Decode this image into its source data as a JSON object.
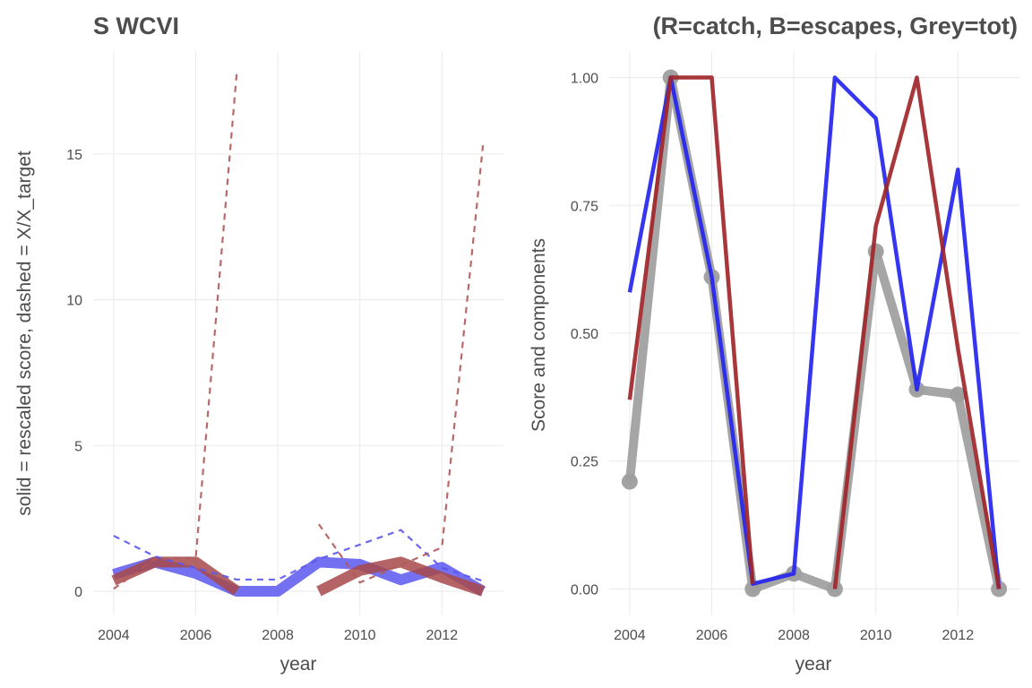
{
  "chart_data": [
    {
      "type": "line",
      "title": "S WCVI",
      "xlabel": "year",
      "ylabel": "solid = rescaled score, dashed = X/X_target",
      "xlim": [
        2003.5,
        2013.5
      ],
      "ylim": [
        -0.8,
        18.5
      ],
      "x_ticks": [
        2004,
        2006,
        2008,
        2010,
        2012
      ],
      "x_tick_labels": [
        "2004",
        "2006",
        "2008",
        "2010",
        "2012"
      ],
      "y_ticks": [
        0,
        5,
        10,
        15
      ],
      "y_tick_labels": [
        "0",
        "5",
        "10",
        "15"
      ],
      "grid": true,
      "x": [
        2004,
        2005,
        2006,
        2007,
        2008,
        2009,
        2010,
        2011,
        2012,
        2013
      ],
      "series": [
        {
          "style": "solid",
          "color": "#5b57ee",
          "width": 12,
          "values": [
            0.58,
            1.0,
            0.61,
            0.0,
            0.0,
            1.0,
            0.92,
            0.39,
            0.82,
            0.0
          ]
        },
        {
          "style": "solid",
          "color": "#a8494a",
          "width": 12,
          "values": [
            0.37,
            1.0,
            1.0,
            0.01,
            null,
            0.0,
            0.71,
            1.0,
            0.47,
            0.0
          ]
        },
        {
          "style": "dashed",
          "color": "#5b57ee",
          "width": 2.2,
          "values": [
            1.9,
            1.2,
            0.8,
            0.4,
            0.4,
            1.1,
            1.6,
            2.1,
            0.8,
            0.35
          ]
        },
        {
          "style": "dashed",
          "color": "#b05a5a",
          "width": 2.2,
          "values": [
            0.08,
            1.1,
            1.15,
            17.8,
            null,
            2.3,
            0.3,
            0.9,
            1.5,
            15.3
          ]
        }
      ]
    },
    {
      "type": "line",
      "title": "(R=catch, B=escapes, Grey=tot)",
      "xlabel": "year",
      "ylabel": "Score and components",
      "xlim": [
        2003.5,
        2013.5
      ],
      "ylim": [
        -0.05,
        1.05
      ],
      "x_ticks": [
        2004,
        2006,
        2008,
        2010,
        2012
      ],
      "x_tick_labels": [
        "2004",
        "2006",
        "2008",
        "2010",
        "2012"
      ],
      "y_ticks": [
        0,
        0.25,
        0.5,
        0.75,
        1.0
      ],
      "y_tick_labels": [
        "0.00",
        "0.25",
        "0.50",
        "0.75",
        "1.00"
      ],
      "grid": true,
      "x": [
        2004,
        2005,
        2006,
        2007,
        2008,
        2009,
        2010,
        2011,
        2012,
        2013
      ],
      "series": [
        {
          "color": "#9e9e9e",
          "width": 10,
          "points": true,
          "values": [
            0.21,
            1.0,
            0.61,
            0.0,
            0.03,
            0.0,
            0.66,
            0.39,
            0.38,
            0.0
          ]
        },
        {
          "color": "#2525f0",
          "width": 4.5,
          "values": [
            0.58,
            1.0,
            0.61,
            0.01,
            0.03,
            1.0,
            0.92,
            0.39,
            0.82,
            0.0
          ]
        },
        {
          "color": "#a0262a",
          "width": 4.5,
          "values": [
            0.37,
            1.0,
            1.0,
            0.01,
            null,
            0.0,
            0.71,
            1.0,
            0.47,
            0.0
          ]
        }
      ]
    }
  ]
}
